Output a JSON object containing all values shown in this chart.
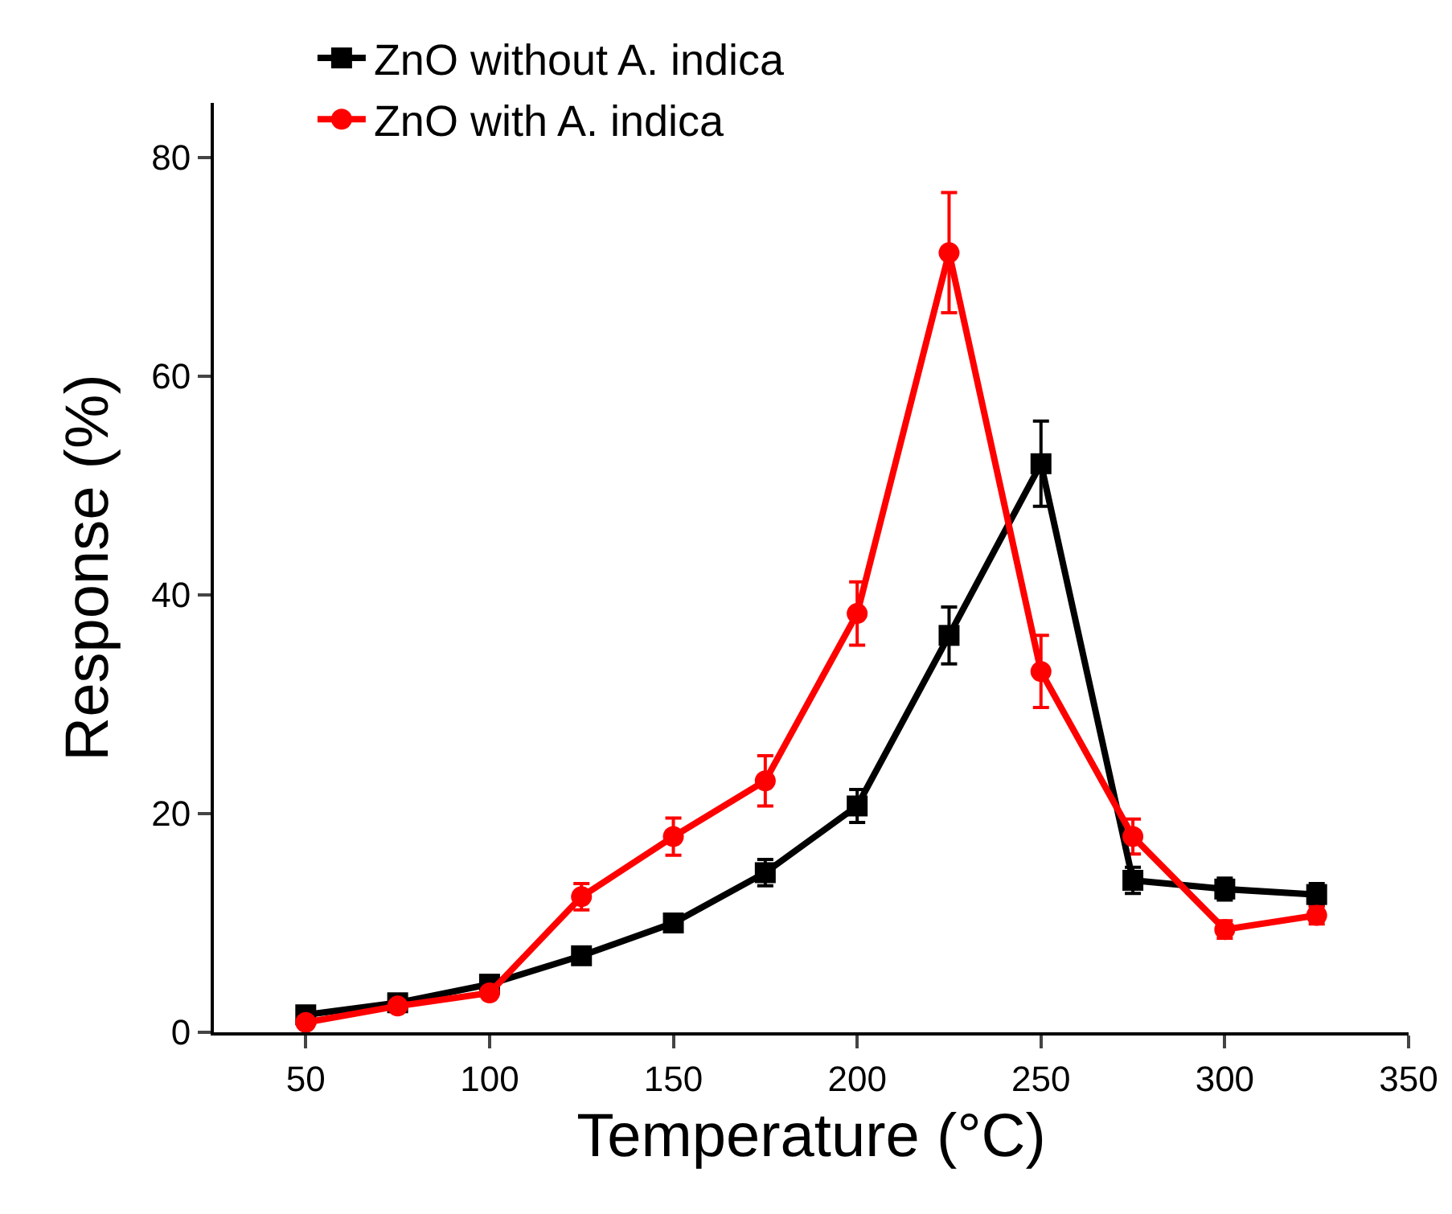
{
  "chart_data": {
    "type": "line",
    "xlabel": "Temperature (°C)",
    "ylabel": "Response (%)",
    "x": [
      50,
      75,
      100,
      125,
      150,
      175,
      200,
      225,
      250,
      275,
      300,
      325
    ],
    "series": [
      {
        "name": "ZnO without A. indica",
        "color": "#000000",
        "marker": "square",
        "values": [
          1.6,
          2.7,
          4.4,
          7.0,
          10.0,
          14.6,
          20.7,
          36.3,
          52.0,
          13.9,
          13.1,
          12.6
        ],
        "errors": [
          null,
          null,
          null,
          null,
          null,
          1.2,
          1.5,
          2.6,
          3.9,
          1.2,
          1.0,
          1.0
        ]
      },
      {
        "name": "ZnO with A. indica",
        "color": "#ff0000",
        "marker": "circle",
        "values": [
          0.9,
          2.4,
          3.6,
          12.4,
          17.9,
          23.0,
          38.3,
          71.3,
          33.0,
          17.9,
          9.4,
          10.7
        ],
        "errors": [
          null,
          null,
          null,
          1.2,
          1.7,
          2.3,
          2.9,
          5.5,
          3.3,
          1.6,
          0.8,
          0.8
        ]
      }
    ],
    "xlim": [
      25,
      350
    ],
    "xticks": [
      50,
      100,
      150,
      200,
      250,
      300,
      350
    ],
    "ylim": [
      0,
      85
    ],
    "yticks": [
      0,
      20,
      40,
      60,
      80
    ],
    "grid": false,
    "legend": "top left",
    "line_style": "solid"
  }
}
